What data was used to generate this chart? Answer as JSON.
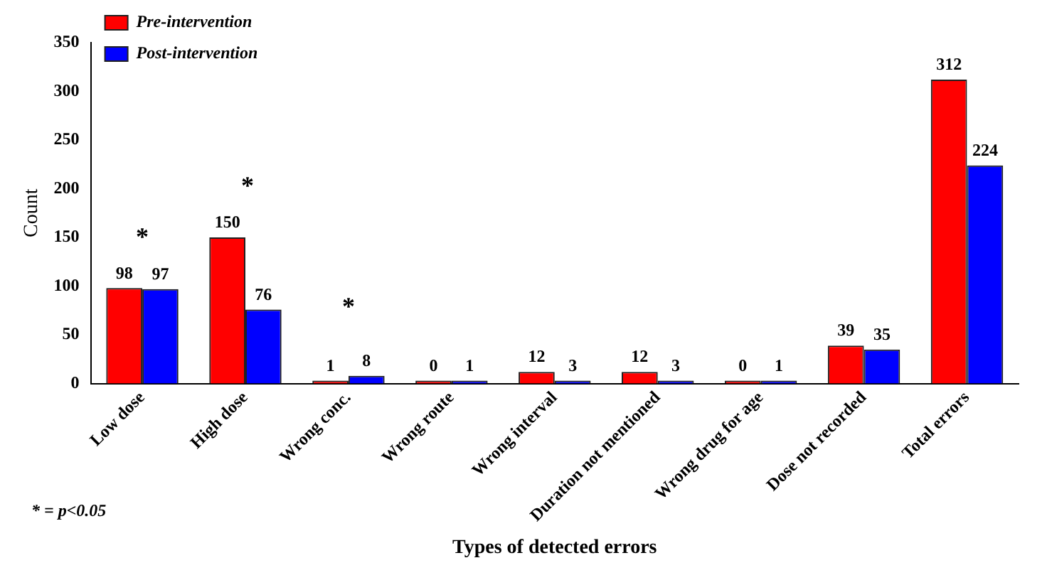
{
  "chart_data": {
    "type": "bar",
    "xlabel": "Types of detected errors",
    "ylabel": "Count",
    "categories": [
      "Low dose",
      "High dose",
      "Wrong conc.",
      "Wrong route",
      "Wrong interval",
      "Duration not mentioned",
      "Wrong drug for age",
      "Dose not recorded",
      "Total errors"
    ],
    "series": [
      {
        "name": "Pre-intervention",
        "color": "#ff0000",
        "values": [
          98,
          150,
          1,
          0,
          12,
          12,
          0,
          39,
          312
        ]
      },
      {
        "name": "Post-intervention",
        "color": "#0000ff",
        "values": [
          97,
          76,
          8,
          1,
          3,
          3,
          1,
          35,
          224
        ]
      }
    ],
    "ylim": [
      0,
      350
    ],
    "yticks": [
      0,
      50,
      100,
      150,
      200,
      250,
      300,
      350
    ],
    "grid": false,
    "legend": "top left",
    "data_labels": true,
    "annotations": [
      "*",
      "*",
      "*",
      "* = p<0.05"
    ]
  }
}
